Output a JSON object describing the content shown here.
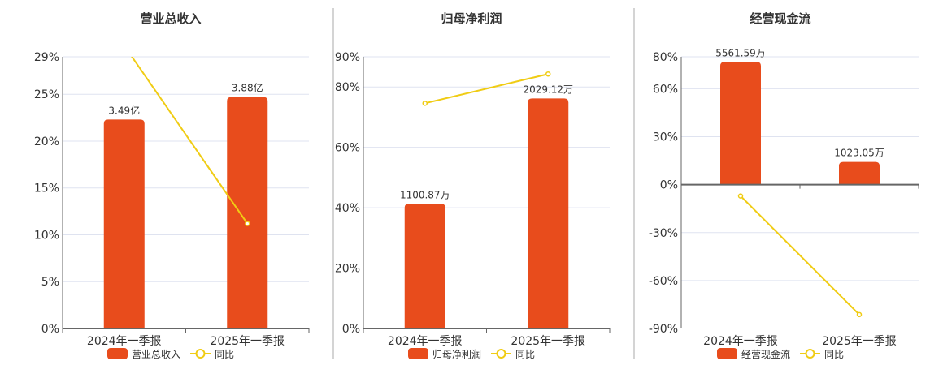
{
  "colors": {
    "bar": "#e84c1c",
    "line": "#f0cc14",
    "grid": "#dfe3f0",
    "axis": "#666666",
    "divider": "#aaaaaa",
    "text": "#333333"
  },
  "chart_data": [
    {
      "type": "bar+line",
      "title": "营业总收入",
      "categories": [
        "2024年一季报",
        "2025年一季报"
      ],
      "yticks": [
        0,
        5,
        10,
        15,
        20,
        25,
        29
      ],
      "ylim": [
        0,
        29
      ],
      "tick_suffix": "%",
      "grid": true,
      "legend_position": "bottom",
      "series": [
        {
          "name": "营业总收入",
          "type": "bar",
          "values": [
            22.3,
            24.7
          ],
          "labels": [
            "3.49亿",
            "3.88亿"
          ]
        },
        {
          "name": "同比",
          "type": "line",
          "values": [
            30.2,
            11.2
          ]
        }
      ]
    },
    {
      "type": "bar+line",
      "title": "归母净利润",
      "categories": [
        "2024年一季报",
        "2025年一季报"
      ],
      "yticks": [
        0,
        20,
        40,
        60,
        80,
        90
      ],
      "ylim": [
        0,
        90
      ],
      "tick_suffix": "%",
      "grid": true,
      "legend_position": "bottom",
      "series": [
        {
          "name": "归母净利润",
          "type": "bar",
          "values": [
            41.3,
            76.2
          ],
          "labels": [
            "1100.87万",
            "2029.12万"
          ]
        },
        {
          "name": "同比",
          "type": "line",
          "values": [
            74.6,
            84.3
          ]
        }
      ]
    },
    {
      "type": "bar+line",
      "title": "经营现金流",
      "categories": [
        "2024年一季报",
        "2025年一季报"
      ],
      "yticks": [
        -90,
        -60,
        -30,
        0,
        30,
        60,
        80
      ],
      "ylim": [
        -90,
        80
      ],
      "tick_suffix": "%",
      "grid": true,
      "legend_position": "bottom",
      "series": [
        {
          "name": "经营现金流",
          "type": "bar",
          "values": [
            76.8,
            14.2
          ],
          "labels": [
            "5561.59万",
            "1023.05万"
          ]
        },
        {
          "name": "同比",
          "type": "line",
          "values": [
            -7.1,
            -81.3
          ]
        }
      ]
    }
  ]
}
